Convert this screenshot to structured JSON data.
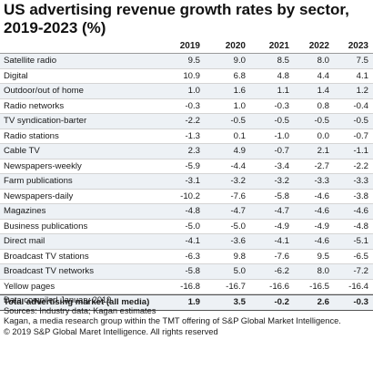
{
  "title": "US advertising revenue growth rates by sector, 2019-2023 (%)",
  "chart_data": {
    "type": "table",
    "columns": [
      "2019",
      "2020",
      "2021",
      "2022",
      "2023"
    ],
    "rows": [
      {
        "label": "Satellite radio",
        "values": [
          "9.5",
          "9.0",
          "8.5",
          "8.0",
          "7.5"
        ]
      },
      {
        "label": "Digital",
        "values": [
          "10.9",
          "6.8",
          "4.8",
          "4.4",
          "4.1"
        ]
      },
      {
        "label": "Outdoor/out of home",
        "values": [
          "1.0",
          "1.6",
          "1.1",
          "1.4",
          "1.2"
        ]
      },
      {
        "label": "Radio networks",
        "values": [
          "-0.3",
          "1.0",
          "-0.3",
          "0.8",
          "-0.4"
        ]
      },
      {
        "label": "TV syndication-barter",
        "values": [
          "-2.2",
          "-0.5",
          "-0.5",
          "-0.5",
          "-0.5"
        ]
      },
      {
        "label": "Radio stations",
        "values": [
          "-1.3",
          "0.1",
          "-1.0",
          "0.0",
          "-0.7"
        ]
      },
      {
        "label": "Cable TV",
        "values": [
          "2.3",
          "4.9",
          "-0.7",
          "2.1",
          "-1.1"
        ]
      },
      {
        "label": "Newspapers-weekly",
        "values": [
          "-5.9",
          "-4.4",
          "-3.4",
          "-2.7",
          "-2.2"
        ]
      },
      {
        "label": "Farm publications",
        "values": [
          "-3.1",
          "-3.2",
          "-3.2",
          "-3.3",
          "-3.3"
        ]
      },
      {
        "label": "Newspapers-daily",
        "values": [
          "-10.2",
          "-7.6",
          "-5.8",
          "-4.6",
          "-3.8"
        ]
      },
      {
        "label": "Magazines",
        "values": [
          "-4.8",
          "-4.7",
          "-4.7",
          "-4.6",
          "-4.6"
        ]
      },
      {
        "label": "Business publications",
        "values": [
          "-5.0",
          "-5.0",
          "-4.9",
          "-4.9",
          "-4.8"
        ]
      },
      {
        "label": "Direct mail",
        "values": [
          "-4.1",
          "-3.6",
          "-4.1",
          "-4.6",
          "-5.1"
        ]
      },
      {
        "label": "Broadcast TV stations",
        "values": [
          "-6.3",
          "9.8",
          "-7.6",
          "9.5",
          "-6.5"
        ]
      },
      {
        "label": "Broadcast TV networks",
        "values": [
          "-5.8",
          "5.0",
          "-6.2",
          "8.0",
          "-7.2"
        ]
      },
      {
        "label": "Yellow pages",
        "values": [
          "-16.8",
          "-16.7",
          "-16.6",
          "-16.5",
          "-16.4"
        ]
      }
    ],
    "total": {
      "label": "Total advertising market (all media)",
      "values": [
        "1.9",
        "3.5",
        "-0.2",
        "2.6",
        "-0.3"
      ]
    }
  },
  "notes": [
    "Data compiled January 2019.",
    "Sources: Industry data; Kagan estimates",
    "Kagan, a media research group within the TMT offering of S&P Global Market Intelligence.",
    "© 2019 S&P Global Maret Intelligence. All rights reserved"
  ]
}
